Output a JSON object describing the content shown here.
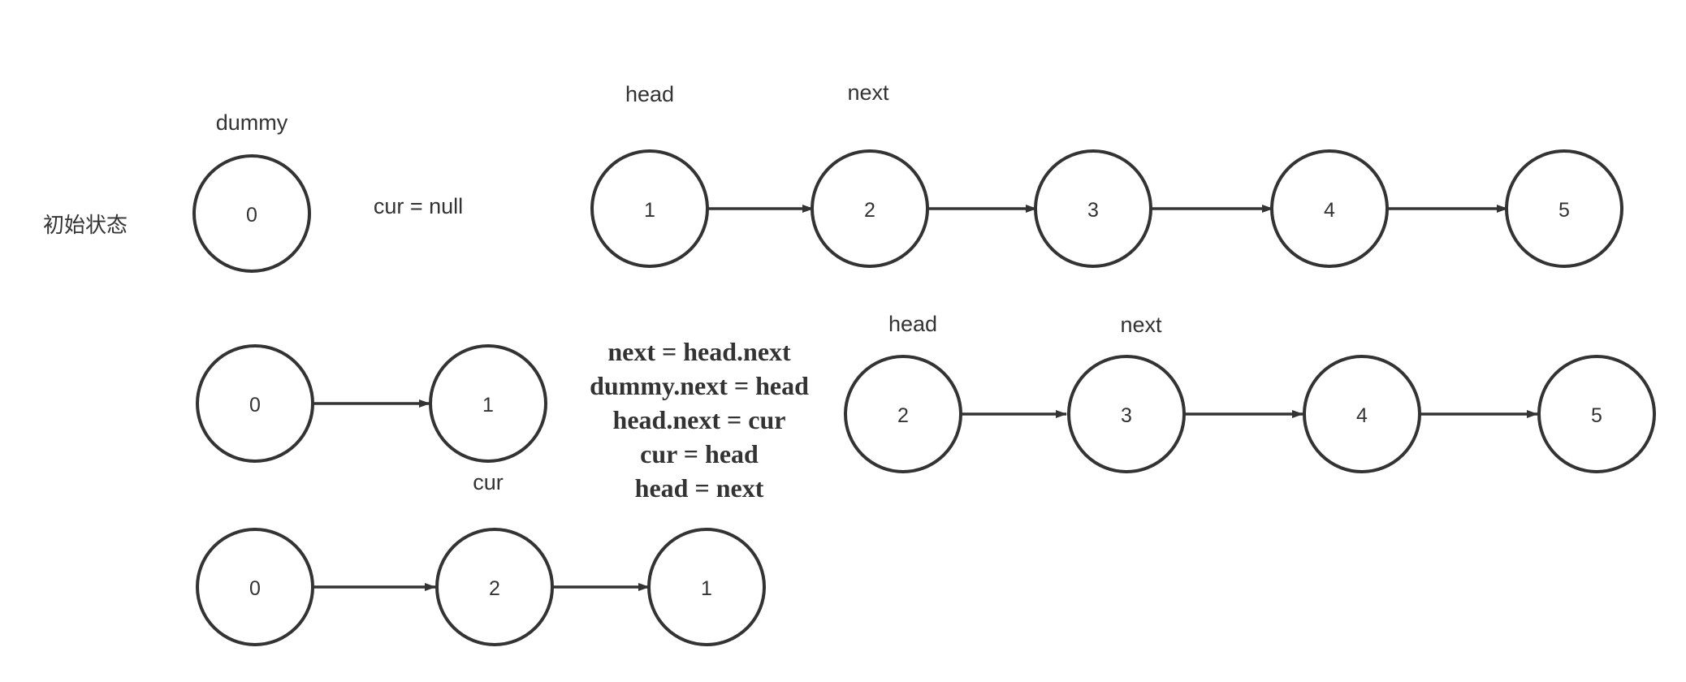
{
  "state_label": "初始状态",
  "labels": {
    "dummy": "dummy",
    "cur_null": "cur = null",
    "row1_head": "head",
    "row1_next": "next",
    "row2_head": "head",
    "row2_next": "next",
    "row2_cur": "cur"
  },
  "code_lines": [
    "next = head.next",
    "dummy.next = head",
    "head.next = cur",
    "cur = head",
    "head = next"
  ],
  "nodes": {
    "row1_dummy": "0",
    "row1_list": [
      "1",
      "2",
      "3",
      "4",
      "5"
    ],
    "row2_left": [
      "0",
      "1"
    ],
    "row2_right": [
      "2",
      "3",
      "4",
      "5"
    ],
    "row3": [
      "0",
      "2",
      "1"
    ]
  }
}
